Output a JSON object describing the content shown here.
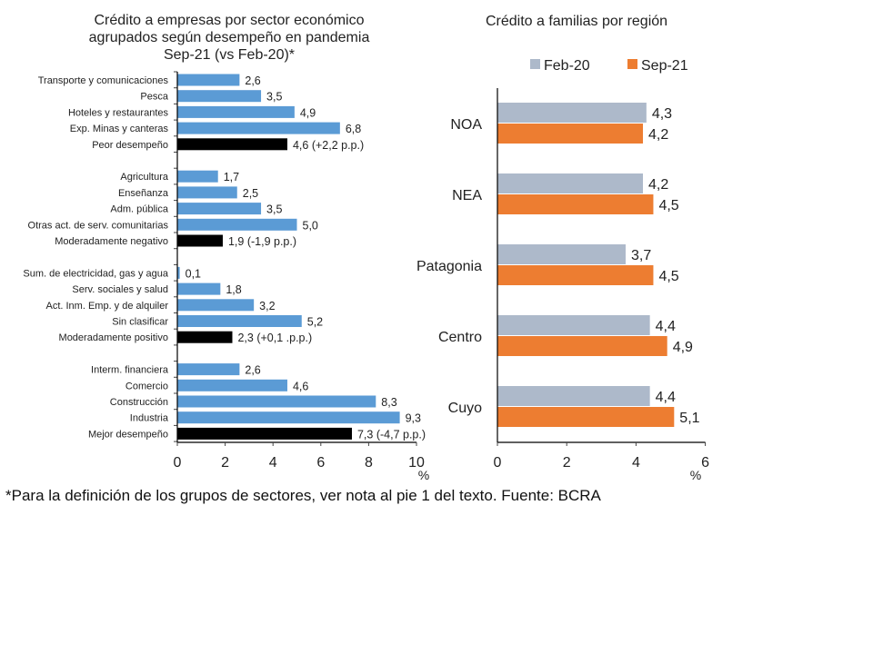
{
  "chart_data": [
    {
      "type": "bar",
      "orientation": "horizontal",
      "title": [
        "Crédito a empresas por sector económico",
        "agrupados según desempeño en pandemia",
        "Sep-21 (vs Feb-20)*"
      ],
      "xlabel": "%",
      "xlim": [
        0,
        10
      ],
      "xticks": [
        "0",
        "2",
        "4",
        "6",
        "8",
        "10"
      ],
      "grid": false,
      "colors": {
        "sector": "#5b9bd5",
        "group_total": "#000000"
      },
      "groups": [
        {
          "rows": [
            {
              "label": "Transporte y comunicaciones",
              "value": 2.6,
              "data_label": "2,6",
              "total": false
            },
            {
              "label": "Pesca",
              "value": 3.5,
              "data_label": "3,5",
              "total": false
            },
            {
              "label": "Hoteles y restaurantes",
              "value": 4.9,
              "data_label": "4,9",
              "total": false
            },
            {
              "label": "Exp. Minas y canteras",
              "value": 6.8,
              "data_label": "6,8",
              "total": false
            },
            {
              "label": "Peor desempeño",
              "value": 4.6,
              "data_label": "4,6 (+2,2 p.p.)",
              "total": true
            }
          ]
        },
        {
          "rows": [
            {
              "label": "Agricultura",
              "value": 1.7,
              "data_label": "1,7",
              "total": false
            },
            {
              "label": "Enseñanza",
              "value": 2.5,
              "data_label": "2,5",
              "total": false
            },
            {
              "label": "Adm. pública",
              "value": 3.5,
              "data_label": "3,5",
              "total": false
            },
            {
              "label": "Otras act. de serv. comunitarias",
              "value": 5.0,
              "data_label": "5,0",
              "total": false
            },
            {
              "label": "Moderadamente negativo",
              "value": 1.9,
              "data_label": "1,9 (-1,9 p.p.)",
              "total": true
            }
          ]
        },
        {
          "rows": [
            {
              "label": "Sum. de electricidad, gas y agua",
              "value": 0.1,
              "data_label": "0,1",
              "total": false
            },
            {
              "label": "Serv. sociales y salud",
              "value": 1.8,
              "data_label": "1,8",
              "total": false
            },
            {
              "label": "Act. Inm. Emp. y de alquiler",
              "value": 3.2,
              "data_label": "3,2",
              "total": false
            },
            {
              "label": "Sin clasificar",
              "value": 5.2,
              "data_label": "5,2",
              "total": false
            },
            {
              "label": "Moderadamente positivo",
              "value": 2.3,
              "data_label": "2,3 (+0,1 .p.p.)",
              "total": true
            }
          ]
        },
        {
          "rows": [
            {
              "label": "Interm. financiera",
              "value": 2.6,
              "data_label": "2,6",
              "total": false
            },
            {
              "label": "Comercio",
              "value": 4.6,
              "data_label": "4,6",
              "total": false
            },
            {
              "label": "Construcción",
              "value": 8.3,
              "data_label": "8,3",
              "total": false
            },
            {
              "label": "Industria",
              "value": 9.3,
              "data_label": "9,3",
              "total": false
            },
            {
              "label": "Mejor desempeño",
              "value": 7.3,
              "data_label": "7,3 (-4,7 p.p.)",
              "total": true
            }
          ]
        }
      ]
    },
    {
      "type": "bar",
      "orientation": "horizontal",
      "title": "Crédito a familias por región",
      "xlabel": "%",
      "xlim": [
        0,
        6
      ],
      "xticks": [
        "0",
        "2",
        "4",
        "6"
      ],
      "grid": false,
      "legend_position": "top",
      "categories": [
        "NOA",
        "NEA",
        "Patagonia",
        "Centro",
        "Cuyo"
      ],
      "series": [
        {
          "name": "Feb-20",
          "color": "#adb9ca",
          "values": [
            4.3,
            4.2,
            3.7,
            4.4,
            4.4
          ],
          "data_labels": [
            "4,3",
            "4,2",
            "3,7",
            "4,4",
            "4,4"
          ]
        },
        {
          "name": "Sep-21",
          "color": "#ed7d31",
          "values": [
            4.2,
            4.5,
            4.5,
            4.9,
            5.1
          ],
          "data_labels": [
            "4,2",
            "4,5",
            "4,5",
            "4,9",
            "5,1"
          ]
        }
      ]
    }
  ],
  "footnote": "*Para la definición de los grupos de sectores, ver nota al pie 1 del texto. Fuente: BCRA"
}
